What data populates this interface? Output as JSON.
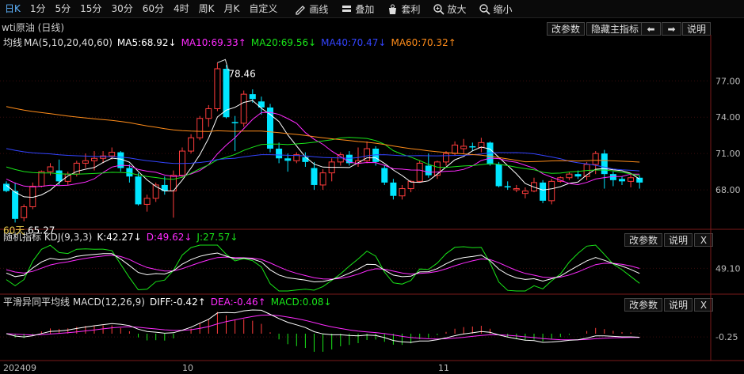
{
  "toolbar": {
    "periods": [
      {
        "label": "日K",
        "active": true
      },
      {
        "label": "1分",
        "active": false
      },
      {
        "label": "5分",
        "active": false
      },
      {
        "label": "15分",
        "active": false
      },
      {
        "label": "30分",
        "active": false
      },
      {
        "label": "60分",
        "active": false
      },
      {
        "label": "4时",
        "active": false
      },
      {
        "label": "周K",
        "active": false
      },
      {
        "label": "月K",
        "active": false
      },
      {
        "label": "自定义",
        "active": false
      }
    ],
    "tools": [
      {
        "label": "画线",
        "icon": "pencil-icon"
      },
      {
        "label": "叠加",
        "icon": "layers-icon"
      },
      {
        "label": "套利",
        "icon": "bag-icon"
      },
      {
        "label": "放大",
        "icon": "zoom-in-icon"
      },
      {
        "label": "缩小",
        "icon": "zoom-out-icon"
      }
    ]
  },
  "main": {
    "title": "wti原油 (日线)",
    "buttons": {
      "params": "改参数",
      "hide": "隐藏主指标",
      "help": "说明"
    },
    "legend": {
      "name": "均线",
      "params": "MA(5,10,20,40,60)",
      "ma5": "MA5:68.92↓",
      "ma10": "MA10:69.33↑",
      "ma20": "MA20:69.56↓",
      "ma40": "MA40:70.47↓",
      "ma60": "MA60:70.32↑"
    },
    "y_ticks": [
      "77.00",
      "74.00",
      "71.00",
      "68.00"
    ],
    "high_label": "78.46",
    "low_label": "65.27",
    "low_prefix": "60天"
  },
  "kdj": {
    "legend": {
      "name": "随机指标 KDJ(9,3,3)",
      "k": "K:42.27↓",
      "d": "D:49.62↓",
      "j": "J:27.57↓"
    },
    "buttons": {
      "params": "改参数",
      "help": "说明",
      "close": "X"
    },
    "y_tick": "49.10"
  },
  "macd": {
    "legend": {
      "name": "平滑异同平均线 MACD(12,26,9)",
      "diff": "DIFF:-0.42↑",
      "dea": "DEA:-0.46↑",
      "macd": "MACD:0.08↓"
    },
    "buttons": {
      "params": "改参数",
      "help": "说明",
      "close": "X"
    },
    "y_tick": "-0.25"
  },
  "x_axis": {
    "labels": [
      "202409",
      "10",
      "11"
    ]
  },
  "colors": {
    "up": "#ff3c3c",
    "down": "#00e5ff",
    "ma5": "#ffffff",
    "ma10": "#ff2bff",
    "ma20": "#19e619",
    "ma40": "#3344ff",
    "ma60": "#ff8c1a",
    "dea": "#ff2bff"
  },
  "chart_data": {
    "type": "candlestick",
    "y_range": [
      65.0,
      79.5
    ],
    "candles": [
      [
        68.5,
        68.7,
        67.8,
        67.9
      ],
      [
        67.9,
        68.6,
        65.3,
        65.6
      ],
      [
        65.7,
        66.8,
        65.4,
        66.6
      ],
      [
        66.6,
        68.6,
        66.4,
        68.3
      ],
      [
        68.3,
        69.6,
        68.2,
        69.5
      ],
      [
        69.5,
        70.2,
        69.2,
        69.9
      ],
      [
        69.6,
        70.5,
        68.4,
        68.7
      ],
      [
        68.7,
        69.5,
        68.4,
        69.3
      ],
      [
        69.3,
        70.4,
        69.1,
        70.2
      ],
      [
        70.2,
        71.0,
        69.8,
        70.4
      ],
      [
        70.4,
        71.2,
        69.6,
        70.6
      ],
      [
        70.6,
        71.2,
        70.2,
        70.8
      ],
      [
        70.8,
        71.5,
        70.5,
        71.1
      ],
      [
        71.1,
        71.2,
        69.5,
        69.8
      ],
      [
        69.8,
        70.1,
        68.6,
        69.1
      ],
      [
        69.1,
        69.4,
        66.7,
        66.8
      ],
      [
        66.8,
        67.6,
        66.2,
        67.3
      ],
      [
        67.3,
        68.6,
        67.0,
        68.4
      ],
      [
        68.4,
        69.1,
        67.6,
        67.9
      ],
      [
        67.9,
        69.6,
        65.7,
        69.2
      ],
      [
        69.2,
        71.5,
        69.0,
        71.2
      ],
      [
        71.2,
        72.6,
        71.0,
        72.3
      ],
      [
        72.3,
        74.1,
        72.1,
        73.9
      ],
      [
        73.9,
        75.0,
        73.2,
        74.7
      ],
      [
        74.7,
        78.5,
        74.5,
        78.0
      ],
      [
        78.0,
        78.3,
        73.9,
        74.0
      ],
      [
        73.6,
        74.1,
        71.2,
        73.5
      ],
      [
        73.5,
        76.2,
        73.2,
        75.9
      ],
      [
        75.9,
        76.3,
        75.2,
        75.5
      ],
      [
        75.3,
        75.7,
        74.2,
        74.8
      ],
      [
        74.8,
        75.1,
        71.1,
        71.4
      ],
      [
        71.4,
        71.9,
        70.2,
        70.6
      ],
      [
        70.6,
        71.0,
        69.5,
        70.4
      ],
      [
        70.4,
        71.1,
        70.2,
        70.9
      ],
      [
        70.7,
        71.1,
        69.9,
        70.3
      ],
      [
        69.8,
        70.3,
        68.0,
        68.4
      ],
      [
        68.4,
        69.7,
        68.0,
        69.4
      ],
      [
        69.4,
        70.6,
        68.7,
        70.3
      ],
      [
        70.3,
        71.1,
        70.0,
        70.9
      ],
      [
        70.9,
        71.2,
        70.0,
        70.2
      ],
      [
        70.2,
        71.5,
        69.9,
        70.4
      ],
      [
        70.4,
        72.0,
        70.2,
        71.4
      ],
      [
        71.4,
        71.6,
        70.0,
        70.3
      ],
      [
        69.8,
        70.0,
        68.4,
        68.6
      ],
      [
        68.6,
        68.9,
        67.2,
        67.5
      ],
      [
        67.5,
        68.4,
        67.2,
        68.1
      ],
      [
        68.1,
        68.8,
        67.8,
        68.7
      ],
      [
        68.7,
        70.4,
        68.6,
        70.2
      ],
      [
        70.0,
        71.0,
        69.0,
        69.2
      ],
      [
        69.2,
        70.4,
        68.9,
        70.3
      ],
      [
        70.3,
        71.2,
        70.0,
        71.0
      ],
      [
        71.0,
        72.0,
        70.8,
        71.7
      ],
      [
        71.4,
        72.2,
        71.0,
        71.6
      ],
      [
        71.6,
        71.9,
        71.2,
        71.5
      ],
      [
        71.5,
        72.3,
        71.1,
        71.9
      ],
      [
        71.9,
        72.0,
        70.0,
        70.1
      ],
      [
        70.1,
        70.3,
        68.2,
        68.3
      ],
      [
        68.3,
        68.7,
        68.0,
        68.2
      ],
      [
        68.0,
        68.4,
        67.8,
        68.1
      ],
      [
        67.7,
        68.2,
        67.3,
        67.9
      ],
      [
        67.9,
        69.0,
        67.8,
        68.6
      ],
      [
        68.6,
        68.8,
        66.9,
        67.1
      ],
      [
        67.1,
        68.9,
        66.8,
        68.7
      ],
      [
        68.7,
        69.1,
        68.6,
        69.0
      ],
      [
        69.0,
        69.5,
        68.8,
        69.3
      ],
      [
        69.3,
        69.6,
        68.9,
        69.1
      ],
      [
        69.1,
        70.3,
        68.8,
        70.1
      ],
      [
        70.1,
        71.2,
        69.3,
        71.0
      ],
      [
        71.0,
        71.3,
        68.1,
        69.3
      ],
      [
        69.3,
        69.5,
        68.3,
        68.8
      ],
      [
        68.9,
        69.1,
        68.4,
        68.7
      ],
      [
        68.7,
        69.3,
        68.2,
        69.0
      ],
      [
        69.0,
        69.2,
        68.1,
        68.6
      ]
    ]
  }
}
